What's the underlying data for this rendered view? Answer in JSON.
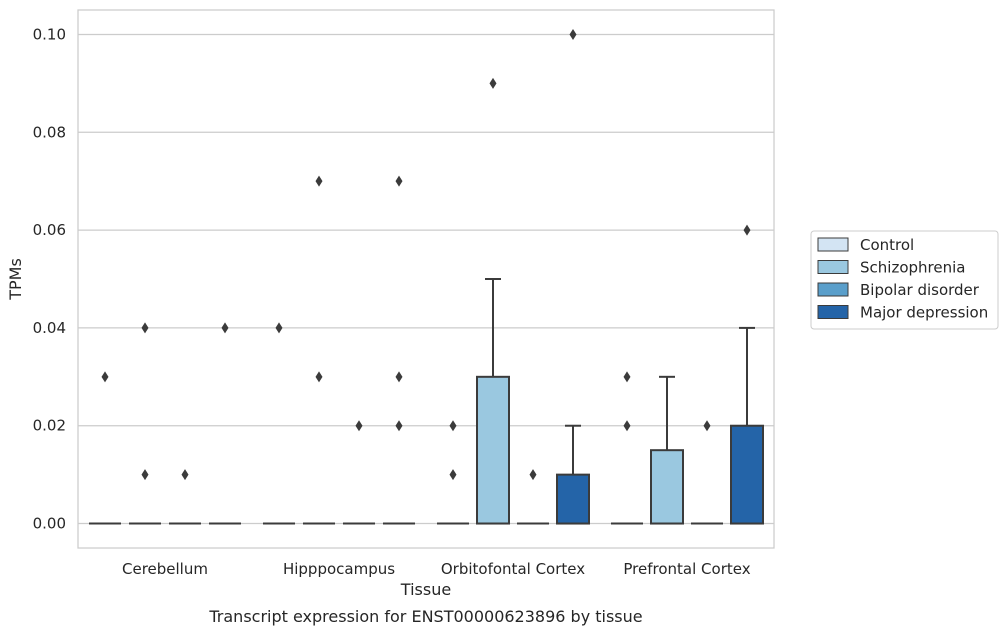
{
  "chart_data": {
    "type": "box",
    "title": "",
    "caption": "Transcript expression for ENST00000623896 by tissue",
    "xlabel": "Tissue",
    "ylabel": "TPMs",
    "ylim": [
      -0.005,
      0.105
    ],
    "yticks": [
      0.0,
      0.02,
      0.04,
      0.06,
      0.08,
      0.1
    ],
    "ytick_labels": [
      "0.00",
      "0.02",
      "0.04",
      "0.06",
      "0.08",
      "0.10"
    ],
    "grid": true,
    "legend_position": "right",
    "categories": [
      "Cerebellum",
      "Hipppocampus",
      "Orbitofontal Cortex",
      "Prefrontal Cortex"
    ],
    "series": [
      {
        "name": "Control",
        "color": "#d3e4f3",
        "boxes": [
          {
            "q1": 0,
            "median": 0,
            "q3": 0,
            "whisker_low": 0,
            "whisker_high": 0,
            "outliers": [
              0.03
            ]
          },
          {
            "q1": 0,
            "median": 0,
            "q3": 0,
            "whisker_low": 0,
            "whisker_high": 0,
            "outliers": [
              0.04
            ]
          },
          {
            "q1": 0,
            "median": 0,
            "q3": 0,
            "whisker_low": 0,
            "whisker_high": 0,
            "outliers": [
              0.01,
              0.02
            ]
          },
          {
            "q1": 0,
            "median": 0,
            "q3": 0,
            "whisker_low": 0,
            "whisker_high": 0,
            "outliers": [
              0.02,
              0.03
            ]
          }
        ]
      },
      {
        "name": "Schizophrenia",
        "color": "#9ac8e0",
        "boxes": [
          {
            "q1": 0,
            "median": 0,
            "q3": 0,
            "whisker_low": 0,
            "whisker_high": 0,
            "outliers": [
              0.01,
              0.04
            ]
          },
          {
            "q1": 0,
            "median": 0,
            "q3": 0,
            "whisker_low": 0,
            "whisker_high": 0,
            "outliers": [
              0.03,
              0.07
            ]
          },
          {
            "q1": 0,
            "median": 0,
            "q3": 0.03,
            "whisker_low": 0,
            "whisker_high": 0.05,
            "outliers": [
              0.09
            ]
          },
          {
            "q1": 0,
            "median": 0,
            "q3": 0.015,
            "whisker_low": 0,
            "whisker_high": 0.03,
            "outliers": []
          }
        ]
      },
      {
        "name": "Bipolar disorder",
        "color": "#5a9fcb",
        "boxes": [
          {
            "q1": 0,
            "median": 0,
            "q3": 0,
            "whisker_low": 0,
            "whisker_high": 0,
            "outliers": [
              0.01
            ]
          },
          {
            "q1": 0,
            "median": 0,
            "q3": 0,
            "whisker_low": 0,
            "whisker_high": 0,
            "outliers": [
              0.02
            ]
          },
          {
            "q1": 0,
            "median": 0,
            "q3": 0,
            "whisker_low": 0,
            "whisker_high": 0,
            "outliers": [
              0.01
            ]
          },
          {
            "q1": 0,
            "median": 0,
            "q3": 0,
            "whisker_low": 0,
            "whisker_high": 0,
            "outliers": [
              0.02
            ]
          }
        ]
      },
      {
        "name": "Major depression",
        "color": "#2464a8",
        "boxes": [
          {
            "q1": 0,
            "median": 0,
            "q3": 0,
            "whisker_low": 0,
            "whisker_high": 0,
            "outliers": [
              0.04
            ]
          },
          {
            "q1": 0,
            "median": 0,
            "q3": 0,
            "whisker_low": 0,
            "whisker_high": 0,
            "outliers": [
              0.02,
              0.03,
              0.07
            ]
          },
          {
            "q1": 0,
            "median": 0,
            "q3": 0.01,
            "whisker_low": 0,
            "whisker_high": 0.02,
            "outliers": [
              0.1
            ]
          },
          {
            "q1": 0,
            "median": 0,
            "q3": 0.02,
            "whisker_low": 0,
            "whisker_high": 0.04,
            "outliers": [
              0.06
            ]
          }
        ]
      }
    ]
  }
}
